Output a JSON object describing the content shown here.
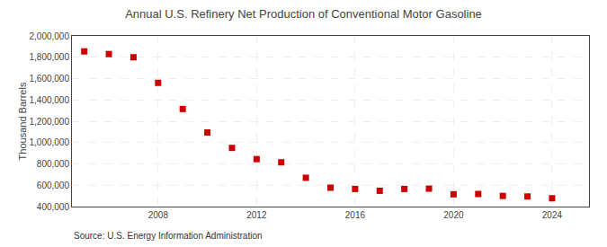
{
  "chart_data": {
    "type": "scatter",
    "title": "Annual U.S. Refinery Net Production of Conventional Motor Gasoline",
    "ylabel": "Thousand Barrels",
    "annotations": [
      "Source: U.S. Energy Information Administration"
    ],
    "x": [
      2005,
      2006,
      2007,
      2008,
      2009,
      2010,
      2011,
      2012,
      2013,
      2014,
      2015,
      2016,
      2017,
      2018,
      2019,
      2020,
      2021,
      2022,
      2023,
      2024
    ],
    "values": [
      1855000,
      1830000,
      1800000,
      1560000,
      1315000,
      1095000,
      950000,
      845000,
      815000,
      670000,
      577000,
      565000,
      548000,
      565000,
      568000,
      515000,
      518000,
      500000,
      495000,
      478000
    ],
    "color": "#cc0000",
    "marker": "square",
    "xlim": [
      2004.5,
      2025.5
    ],
    "xticks": [
      2008,
      2012,
      2016,
      2020,
      2024
    ],
    "ylim": [
      400000,
      2000000
    ],
    "yticks": [
      {
        "value": 400000,
        "label": "400,000"
      },
      {
        "value": 600000,
        "label": "600,000"
      },
      {
        "value": 800000,
        "label": "800,000"
      },
      {
        "value": 1000000,
        "label": "1,000,000"
      },
      {
        "value": 1200000,
        "label": "1,200,000"
      },
      {
        "value": 1400000,
        "label": "1,400,000"
      },
      {
        "value": 1600000,
        "label": "1,600,000"
      },
      {
        "value": 1800000,
        "label": "1,800,000"
      },
      {
        "value": 2000000,
        "label": "2,000,000"
      }
    ],
    "grid": true
  }
}
